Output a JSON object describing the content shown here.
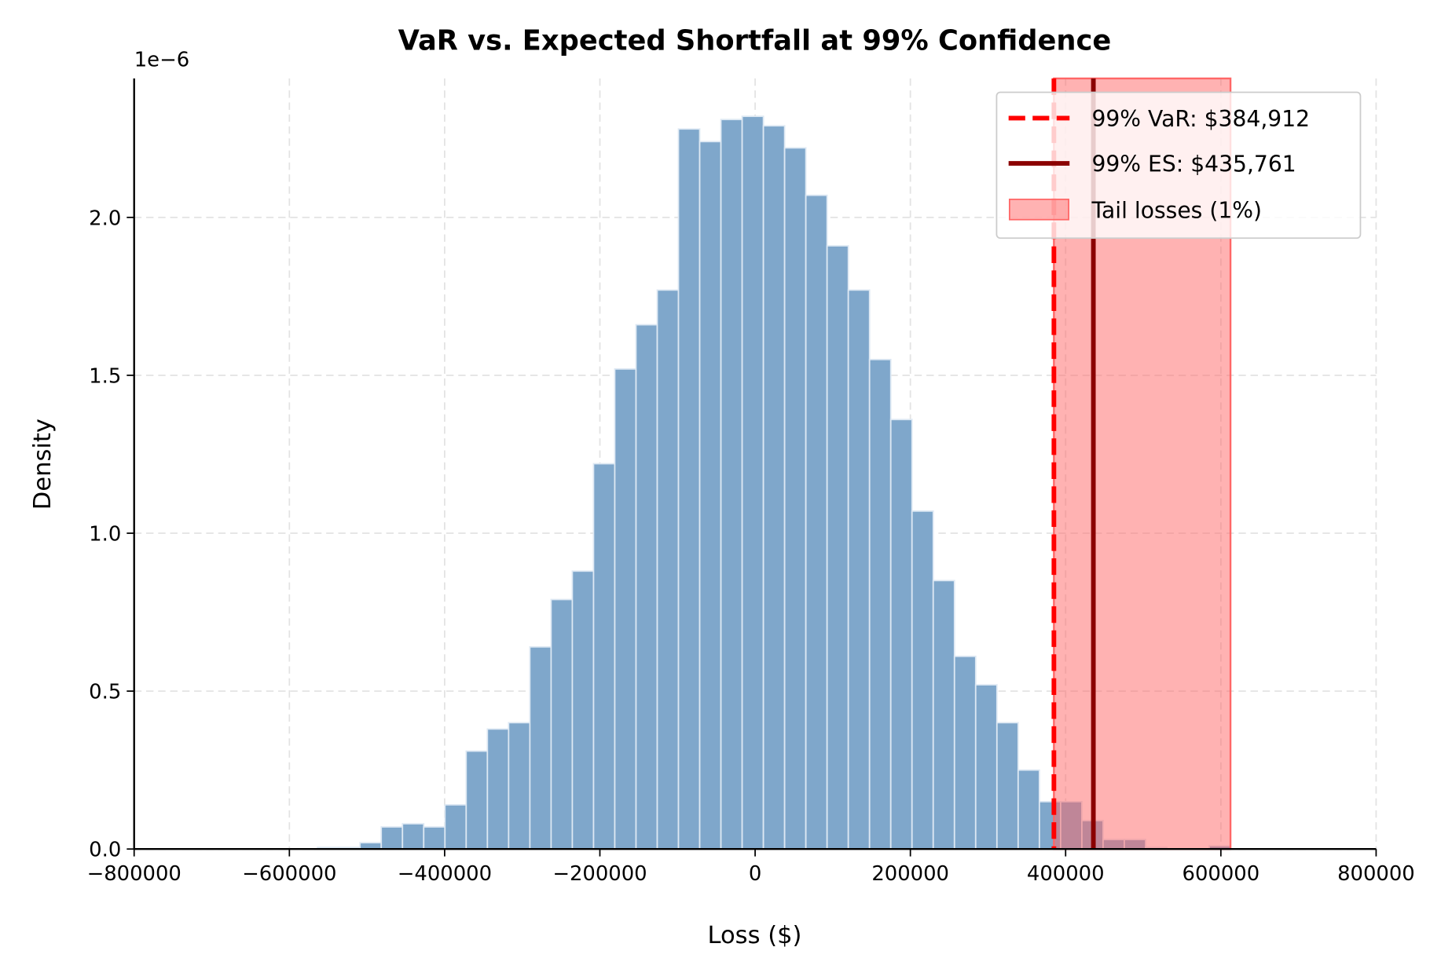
{
  "chart_data": {
    "type": "bar",
    "title": "VaR vs. Expected Shortfall at 99% Confidence",
    "xlabel": "Loss ($)",
    "ylabel": "Density",
    "y_offset_label": "1e−6",
    "xlim": [
      -800000,
      800000
    ],
    "ylim": [
      0,
      2.44
    ],
    "y_unit_multiplier": 1e-06,
    "x_ticks": [
      -800000,
      -600000,
      -400000,
      -200000,
      0,
      200000,
      400000,
      600000,
      800000
    ],
    "x_tick_labels": [
      "−800000",
      "−600000",
      "−400000",
      "−200000",
      "0",
      "200000",
      "400000",
      "600000",
      "800000"
    ],
    "y_ticks": [
      0,
      0.5,
      1.0,
      1.5,
      2.0
    ],
    "y_tick_labels": [
      "0.0",
      "0.5",
      "1.0",
      "1.5",
      "2.0"
    ],
    "grid": true,
    "histogram": {
      "bin_start": -563700,
      "bin_width": 27350,
      "color": "#7fa7cb",
      "edge_color": "#dde8f3",
      "values": [
        0.005,
        0.005,
        0.02,
        0.07,
        0.08,
        0.07,
        0.14,
        0.31,
        0.38,
        0.4,
        0.64,
        0.79,
        0.88,
        1.22,
        1.52,
        1.66,
        1.77,
        2.28,
        2.24,
        2.31,
        2.32,
        2.29,
        2.22,
        2.07,
        1.91,
        1.77,
        1.55,
        1.36,
        1.07,
        0.85,
        0.61,
        0.52,
        0.4,
        0.25,
        0.15,
        0.15,
        0.09,
        0.03,
        0.03,
        0.005,
        0,
        0,
        0.01
      ]
    },
    "var_line": {
      "x": 384912,
      "color": "#ff0000",
      "style": "dashed"
    },
    "es_line": {
      "x": 435761,
      "color": "#8b0000",
      "style": "solid"
    },
    "tail_region": {
      "x_start": 384912,
      "x_end": 612400,
      "color": "#ff6666"
    },
    "legend": {
      "placement": "top-right",
      "entries": [
        "99% VaR: $384,912",
        "99% ES: $435,761",
        "Tail losses (1%)"
      ]
    }
  }
}
